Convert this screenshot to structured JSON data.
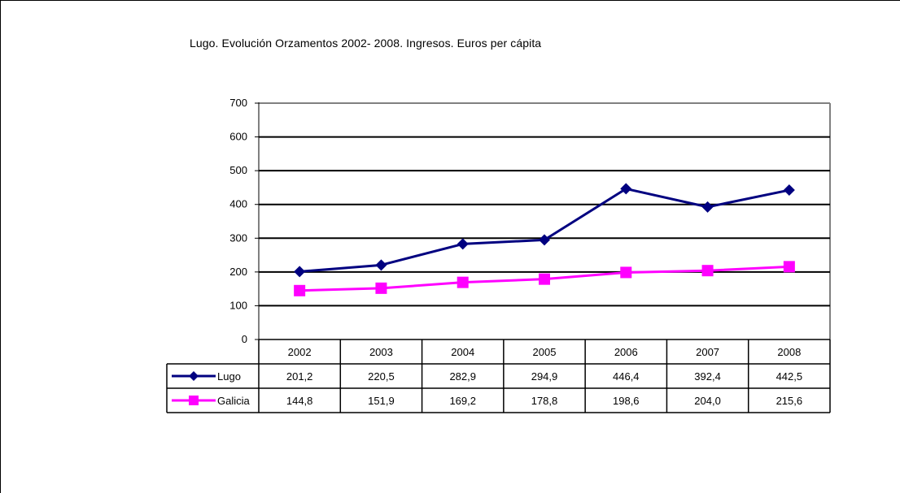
{
  "chart_data": {
    "type": "line",
    "title": "Lugo. Evolución Orzamentos 2002- 2008.   Ingresos. Euros per cápita",
    "xlabel": "",
    "ylabel": "",
    "categories": [
      "2002",
      "2003",
      "2004",
      "2005",
      "2006",
      "2007",
      "2008"
    ],
    "ylim": [
      0,
      700
    ],
    "yticks": [
      0,
      100,
      200,
      300,
      400,
      500,
      600,
      700
    ],
    "grid": true,
    "legend": "data-table-left",
    "series": [
      {
        "name": "Lugo",
        "values": [
          201.2,
          220.5,
          282.9,
          294.9,
          446.4,
          392.4,
          442.5
        ],
        "labels": [
          "201,2",
          "220,5",
          "282,9",
          "294,9",
          "446,4",
          "392,4",
          "442,5"
        ],
        "color": "#000080",
        "marker": "diamond"
      },
      {
        "name": "Galicia",
        "values": [
          144.8,
          151.9,
          169.2,
          178.8,
          198.6,
          204.0,
          215.6
        ],
        "labels": [
          "144,8",
          "151,9",
          "169,2",
          "178,8",
          "198,6",
          "204,0",
          "215,6"
        ],
        "color": "#ff00ff",
        "marker": "square"
      }
    ]
  }
}
